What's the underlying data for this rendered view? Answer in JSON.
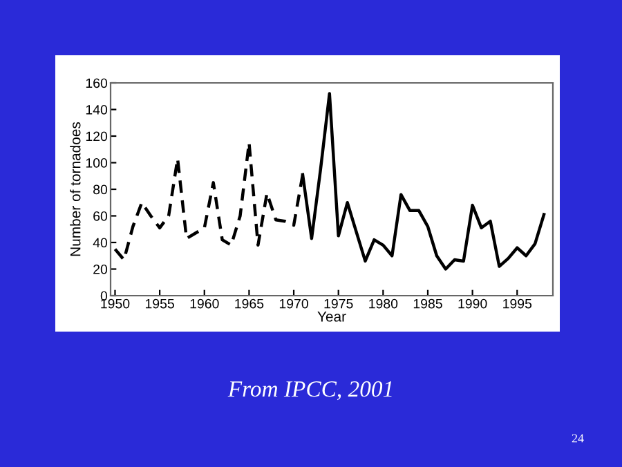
{
  "chart_data": {
    "type": "line",
    "xlabel": "Year",
    "ylabel": "Number of tornadoes",
    "series": [
      {
        "color": "#000000",
        "line_style": "dashed",
        "x": [
          1950,
          1951,
          1952,
          1953,
          1954,
          1955,
          1956,
          1957,
          1958,
          1959,
          1960,
          1961,
          1962,
          1963,
          1964,
          1965,
          1966,
          1967,
          1968,
          1969,
          1970,
          1971
        ],
        "values": [
          35,
          27,
          52,
          70,
          60,
          51,
          60,
          103,
          43,
          47,
          51,
          85,
          42,
          38,
          60,
          115,
          38,
          77,
          57,
          56,
          53,
          91
        ]
      },
      {
        "color": "#000000",
        "line_style": "solid",
        "x": [
          1971,
          1972,
          1973,
          1974,
          1975,
          1976,
          1977,
          1978,
          1979,
          1980,
          1981,
          1982,
          1983,
          1984,
          1985,
          1986,
          1987,
          1988,
          1989,
          1990,
          1991,
          1992,
          1993,
          1994,
          1995,
          1996,
          1997,
          1998
        ],
        "values": [
          91,
          43,
          95,
          152,
          45,
          70,
          48,
          26,
          42,
          38,
          30,
          76,
          64,
          64,
          52,
          30,
          20,
          27,
          26,
          68,
          51,
          56,
          22,
          28,
          36,
          30,
          39,
          61
        ]
      }
    ],
    "xlim": [
      1949.5,
      1999
    ],
    "ylim": [
      0,
      160
    ],
    "xticks": [
      1950,
      1955,
      1960,
      1965,
      1970,
      1975,
      1980,
      1985,
      1990,
      1995
    ],
    "yticks": [
      0,
      20,
      40,
      60,
      80,
      100,
      120,
      140,
      160
    ],
    "grid": false,
    "legend": false,
    "annotations": [
      "From IPCC, 2001",
      "24"
    ]
  }
}
